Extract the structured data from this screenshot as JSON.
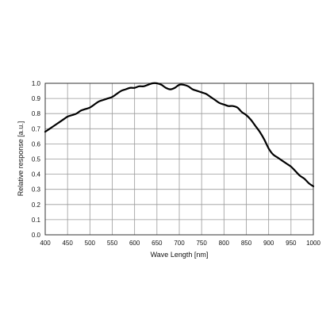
{
  "chart_data": {
    "type": "line",
    "title": "",
    "xlabel": "Wave Length [nm]",
    "ylabel": "Relative response [a.u.]",
    "xlim": [
      400,
      1000
    ],
    "ylim": [
      0.0,
      1.0
    ],
    "grid": true,
    "x_ticks": [
      "400",
      "450",
      "500",
      "550",
      "600",
      "650",
      "700",
      "750",
      "800",
      "850",
      "900",
      "950",
      "1000"
    ],
    "y_ticks": [
      "0.0",
      "0.1",
      "0.2",
      "0.3",
      "0.4",
      "0.5",
      "0.6",
      "0.7",
      "0.8",
      "0.9",
      "1.0"
    ],
    "series": [
      {
        "color": "#000000",
        "x": [
          400,
          410,
          420,
          430,
          440,
          450,
          460,
          470,
          480,
          490,
          500,
          510,
          520,
          530,
          540,
          550,
          560,
          570,
          580,
          590,
          600,
          610,
          620,
          630,
          640,
          650,
          660,
          670,
          680,
          690,
          700,
          710,
          720,
          730,
          740,
          750,
          760,
          770,
          780,
          790,
          800,
          810,
          820,
          830,
          840,
          850,
          860,
          870,
          880,
          890,
          900,
          910,
          920,
          930,
          940,
          950,
          960,
          970,
          980,
          990,
          1000
        ],
        "y": [
          0.68,
          0.7,
          0.72,
          0.74,
          0.76,
          0.78,
          0.79,
          0.8,
          0.82,
          0.83,
          0.84,
          0.86,
          0.88,
          0.89,
          0.9,
          0.91,
          0.93,
          0.95,
          0.96,
          0.97,
          0.97,
          0.98,
          0.98,
          0.99,
          1.0,
          1.0,
          0.99,
          0.97,
          0.96,
          0.97,
          0.99,
          0.99,
          0.98,
          0.96,
          0.95,
          0.94,
          0.93,
          0.91,
          0.89,
          0.87,
          0.86,
          0.85,
          0.85,
          0.84,
          0.81,
          0.79,
          0.76,
          0.72,
          0.68,
          0.63,
          0.57,
          0.53,
          0.51,
          0.49,
          0.47,
          0.45,
          0.42,
          0.39,
          0.37,
          0.34,
          0.32
        ]
      }
    ]
  }
}
